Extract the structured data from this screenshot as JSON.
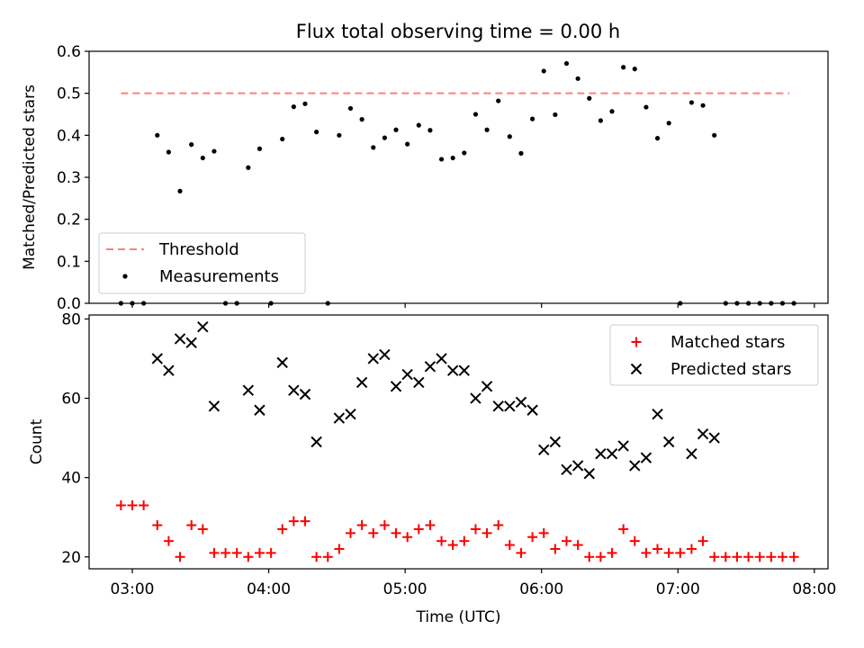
{
  "chart_data": [
    {
      "type": "scatter",
      "title": "Flux total observing time = 0.00 h",
      "xlabel": "",
      "ylabel": "Matched/Predicted stars",
      "xlim": [
        "02:41",
        "08:06"
      ],
      "ylim": [
        0,
        0.6
      ],
      "yticks": [
        "0.0",
        "0.1",
        "0.2",
        "0.3",
        "0.4",
        "0.5",
        "0.6"
      ],
      "grid": false,
      "legend_position": "lower-left",
      "colors": {
        "threshold": "#ff7f7f",
        "measurements": "#000000"
      },
      "series": [
        {
          "name": "Threshold",
          "style": "dashed-line",
          "points": [
            [
              "02:55",
              0.5
            ],
            [
              "07:49",
              0.5
            ]
          ]
        },
        {
          "name": "Measurements",
          "style": "dot",
          "points": [
            [
              "02:55",
              0.0
            ],
            [
              "03:00",
              0.0
            ],
            [
              "03:05",
              0.0
            ],
            [
              "03:11",
              0.4
            ],
            [
              "03:16",
              0.36
            ],
            [
              "03:21",
              0.267
            ],
            [
              "03:26",
              0.378
            ],
            [
              "03:31",
              0.346
            ],
            [
              "03:36",
              0.362
            ],
            [
              "03:41",
              0.0
            ],
            [
              "03:46",
              0.0
            ],
            [
              "03:51",
              0.323
            ],
            [
              "03:56",
              0.368
            ],
            [
              "04:01",
              0.0
            ],
            [
              "04:06",
              0.391
            ],
            [
              "04:11",
              0.468
            ],
            [
              "04:16",
              0.475
            ],
            [
              "04:21",
              0.408
            ],
            [
              "04:26",
              0.0
            ],
            [
              "04:31",
              0.4
            ],
            [
              "04:36",
              0.464
            ],
            [
              "04:41",
              0.438
            ],
            [
              "04:46",
              0.371
            ],
            [
              "04:51",
              0.394
            ],
            [
              "04:56",
              0.413
            ],
            [
              "05:01",
              0.379
            ],
            [
              "05:06",
              0.424
            ],
            [
              "05:11",
              0.412
            ],
            [
              "05:16",
              0.343
            ],
            [
              "05:21",
              0.346
            ],
            [
              "05:26",
              0.358
            ],
            [
              "05:31",
              0.45
            ],
            [
              "05:36",
              0.413
            ],
            [
              "05:41",
              0.482
            ],
            [
              "05:46",
              0.397
            ],
            [
              "05:51",
              0.357
            ],
            [
              "05:56",
              0.439
            ],
            [
              "06:01",
              0.553
            ],
            [
              "06:06",
              0.449
            ],
            [
              "06:11",
              0.571
            ],
            [
              "06:16",
              0.535
            ],
            [
              "06:21",
              0.488
            ],
            [
              "06:26",
              0.435
            ],
            [
              "06:31",
              0.457
            ],
            [
              "06:36",
              0.562
            ],
            [
              "06:41",
              0.558
            ],
            [
              "06:46",
              0.467
            ],
            [
              "06:51",
              0.393
            ],
            [
              "06:56",
              0.429
            ],
            [
              "07:01",
              0.0
            ],
            [
              "07:06",
              0.478
            ],
            [
              "07:11",
              0.471
            ],
            [
              "07:16",
              0.4
            ],
            [
              "07:21",
              0.0
            ],
            [
              "07:26",
              0.0
            ],
            [
              "07:31",
              0.0
            ],
            [
              "07:36",
              0.0
            ],
            [
              "07:41",
              0.0
            ],
            [
              "07:46",
              0.0
            ],
            [
              "07:51",
              0.0
            ]
          ]
        }
      ]
    },
    {
      "type": "scatter",
      "title": "",
      "xlabel": "Time (UTC)",
      "ylabel": "Count",
      "xlim": [
        "02:41",
        "08:06"
      ],
      "ylim": [
        17,
        81
      ],
      "xticks": [
        "03:00",
        "04:00",
        "05:00",
        "06:00",
        "07:00",
        "08:00"
      ],
      "yticks": [
        "20",
        "40",
        "60",
        "80"
      ],
      "grid": false,
      "legend_position": "top-right",
      "colors": {
        "matched": "#ff0000",
        "predicted": "#000000"
      },
      "series": [
        {
          "name": "Matched stars",
          "marker": "plus",
          "points": [
            [
              "02:55",
              33
            ],
            [
              "03:00",
              33
            ],
            [
              "03:05",
              33
            ],
            [
              "03:11",
              28
            ],
            [
              "03:16",
              24
            ],
            [
              "03:21",
              20
            ],
            [
              "03:26",
              28
            ],
            [
              "03:31",
              27
            ],
            [
              "03:36",
              21
            ],
            [
              "03:41",
              21
            ],
            [
              "03:46",
              21
            ],
            [
              "03:51",
              20
            ],
            [
              "03:56",
              21
            ],
            [
              "04:01",
              21
            ],
            [
              "04:06",
              27
            ],
            [
              "04:11",
              29
            ],
            [
              "04:16",
              29
            ],
            [
              "04:21",
              20
            ],
            [
              "04:26",
              20
            ],
            [
              "04:31",
              22
            ],
            [
              "04:36",
              26
            ],
            [
              "04:41",
              28
            ],
            [
              "04:46",
              26
            ],
            [
              "04:51",
              28
            ],
            [
              "04:56",
              26
            ],
            [
              "05:01",
              25
            ],
            [
              "05:06",
              27
            ],
            [
              "05:11",
              28
            ],
            [
              "05:16",
              24
            ],
            [
              "05:21",
              23
            ],
            [
              "05:26",
              24
            ],
            [
              "05:31",
              27
            ],
            [
              "05:36",
              26
            ],
            [
              "05:41",
              28
            ],
            [
              "05:46",
              23
            ],
            [
              "05:51",
              21
            ],
            [
              "05:56",
              25
            ],
            [
              "06:01",
              26
            ],
            [
              "06:06",
              22
            ],
            [
              "06:11",
              24
            ],
            [
              "06:16",
              23
            ],
            [
              "06:21",
              20
            ],
            [
              "06:26",
              20
            ],
            [
              "06:31",
              21
            ],
            [
              "06:36",
              27
            ],
            [
              "06:41",
              24
            ],
            [
              "06:46",
              21
            ],
            [
              "06:51",
              22
            ],
            [
              "06:56",
              21
            ],
            [
              "07:01",
              21
            ],
            [
              "07:06",
              22
            ],
            [
              "07:11",
              24
            ],
            [
              "07:16",
              20
            ],
            [
              "07:21",
              20
            ],
            [
              "07:26",
              20
            ],
            [
              "07:31",
              20
            ],
            [
              "07:36",
              20
            ],
            [
              "07:41",
              20
            ],
            [
              "07:46",
              20
            ],
            [
              "07:51",
              20
            ]
          ]
        },
        {
          "name": "Predicted stars",
          "marker": "x",
          "points": [
            [
              "03:11",
              70
            ],
            [
              "03:16",
              67
            ],
            [
              "03:21",
              75
            ],
            [
              "03:26",
              74
            ],
            [
              "03:31",
              78
            ],
            [
              "03:36",
              58
            ],
            [
              "03:51",
              62
            ],
            [
              "03:56",
              57
            ],
            [
              "04:06",
              69
            ],
            [
              "04:11",
              62
            ],
            [
              "04:16",
              61
            ],
            [
              "04:21",
              49
            ],
            [
              "04:31",
              55
            ],
            [
              "04:36",
              56
            ],
            [
              "04:41",
              64
            ],
            [
              "04:46",
              70
            ],
            [
              "04:51",
              71
            ],
            [
              "04:56",
              63
            ],
            [
              "05:01",
              66
            ],
            [
              "05:06",
              64
            ],
            [
              "05:11",
              68
            ],
            [
              "05:16",
              70
            ],
            [
              "05:21",
              67
            ],
            [
              "05:26",
              67
            ],
            [
              "05:31",
              60
            ],
            [
              "05:36",
              63
            ],
            [
              "05:41",
              58
            ],
            [
              "05:46",
              58
            ],
            [
              "05:51",
              59
            ],
            [
              "05:56",
              57
            ],
            [
              "06:01",
              47
            ],
            [
              "06:06",
              49
            ],
            [
              "06:11",
              42
            ],
            [
              "06:16",
              43
            ],
            [
              "06:21",
              41
            ],
            [
              "06:26",
              46
            ],
            [
              "06:31",
              46
            ],
            [
              "06:36",
              48
            ],
            [
              "06:41",
              43
            ],
            [
              "06:46",
              45
            ],
            [
              "06:51",
              56
            ],
            [
              "06:56",
              49
            ],
            [
              "07:06",
              46
            ],
            [
              "07:11",
              51
            ],
            [
              "07:16",
              50
            ]
          ]
        }
      ]
    }
  ]
}
